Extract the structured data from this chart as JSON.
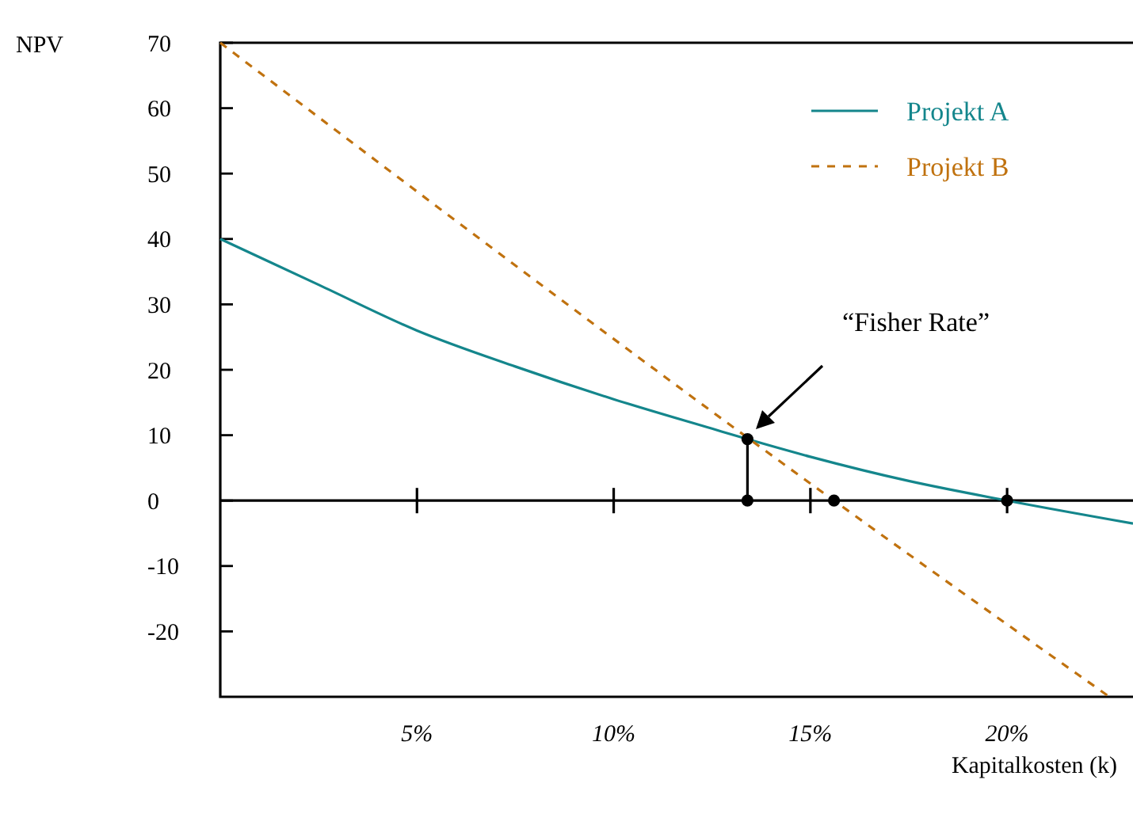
{
  "chart_data": {
    "type": "line",
    "xlabel": "Kapitalkosten (k)",
    "ylabel": "NPV",
    "xlim": [
      0,
      23.2
    ],
    "ylim": [
      -30,
      70
    ],
    "xticks": [
      {
        "value": 5,
        "label": "5%"
      },
      {
        "value": 10,
        "label": "10%"
      },
      {
        "value": 15,
        "label": "15%"
      },
      {
        "value": 20,
        "label": "20%"
      }
    ],
    "yticks": [
      {
        "value": -20,
        "label": "-20"
      },
      {
        "value": -10,
        "label": "-10"
      },
      0,
      10,
      20,
      30,
      40,
      50,
      60,
      70
    ],
    "series": [
      {
        "name": "Projekt A",
        "color": "#14868c",
        "line_style": "solid",
        "x": [
          0,
          2.5,
          5,
          7.5,
          10,
          12.5,
          13.4,
          15,
          17.5,
          20,
          23.2
        ],
        "values": [
          40,
          33,
          26,
          20.5,
          15.5,
          11,
          9.4,
          6.7,
          3,
          0,
          -3.5
        ]
      },
      {
        "name": "Projekt B",
        "color": "#c0720f",
        "line_style": "dashed",
        "x": [
          0,
          15.6,
          22.6
        ],
        "values": [
          70,
          0,
          -30
        ]
      },
      {
        "type": "line",
        "color": "#000000",
        "line_style": "solid",
        "x": [
          13.4,
          13.4
        ],
        "values": [
          0,
          9.4
        ]
      },
      {
        "type": "scatter",
        "color": "#000000",
        "marker": "circle",
        "x": [
          13.4,
          13.4,
          15.6,
          20
        ],
        "values": [
          9.4,
          0,
          0,
          0
        ]
      }
    ],
    "ref_lines": [
      {
        "axis": "y",
        "value": 0,
        "color": "#000000"
      }
    ],
    "annotations": [
      "“Fisher Rate”"
    ],
    "legend": "top right",
    "grid": false
  }
}
